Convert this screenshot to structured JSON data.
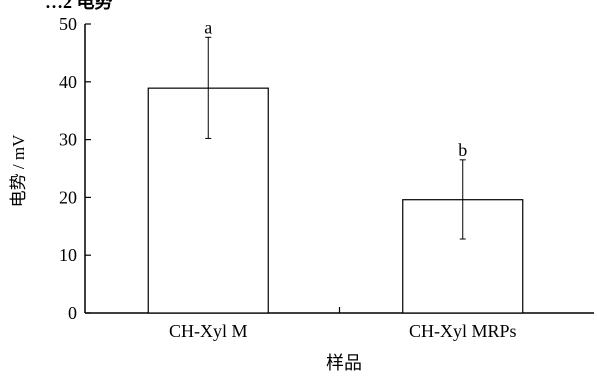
{
  "partial_title": "…2 电势",
  "chart_data": {
    "type": "bar",
    "title": "",
    "xlabel": "样品",
    "ylabel": "电势 / mV",
    "ylim": [
      0,
      50
    ],
    "yticks": [
      0,
      10,
      20,
      30,
      40,
      50
    ],
    "categories": [
      "CH-Xyl M",
      "CH-Xyl MRPs"
    ],
    "values": [
      38.9,
      19.6
    ],
    "error_low": [
      30.2,
      12.8
    ],
    "error_high": [
      47.7,
      26.5
    ],
    "significance_labels": [
      "a",
      "b"
    ],
    "bar_fill": "#ffffff",
    "bar_stroke": "#000000",
    "grid": false,
    "legend": "none"
  }
}
